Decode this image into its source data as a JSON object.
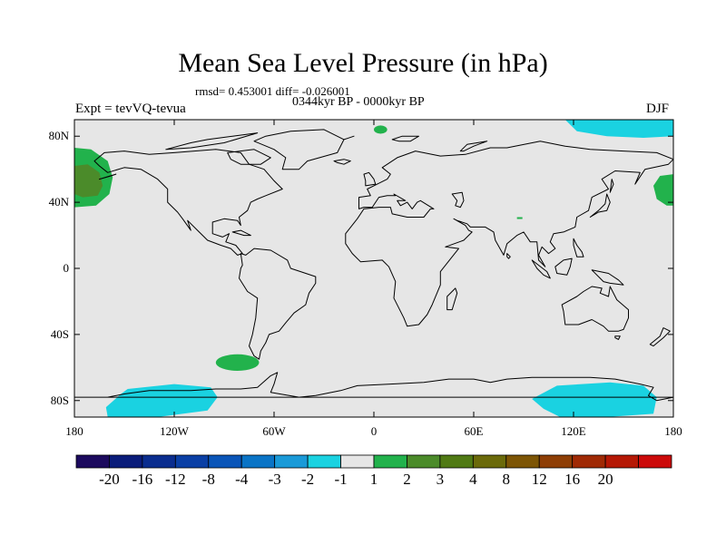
{
  "title": "Mean Sea Level Pressure (in hPa)",
  "stats": "rmsd= 0.453001 diff= -0.026001",
  "period": "0344kyr BP - 0000kyr BP",
  "experiment": "Expt = tevVQ-tevua",
  "season": "DJF",
  "map": {
    "background_color": "#e6e6e6",
    "coastline_color": "#000000",
    "lat_ticks": [
      "80N",
      "40N",
      "0",
      "40S",
      "80S"
    ],
    "lat_values": [
      80,
      40,
      0,
      -40,
      -80
    ],
    "lon_ticks": [
      "180",
      "120W",
      "60W",
      "0",
      "60E",
      "120E",
      "180"
    ],
    "lon_values": [
      -180,
      -120,
      -60,
      0,
      60,
      120,
      180
    ],
    "anomalies": [
      {
        "region": "North Pacific",
        "category": "3",
        "color": "#4b8b2a"
      },
      {
        "region": "North Pacific",
        "category": "2",
        "color": "#22b24c"
      },
      {
        "region": "Northwest Pacific",
        "category": "2",
        "color": "#22b24c"
      },
      {
        "region": "South Pacific off Chile",
        "category": "2",
        "color": "#22b24c"
      },
      {
        "region": "Svalbard",
        "category": "2",
        "color": "#22b24c"
      },
      {
        "region": "Arctic Siberia",
        "category": "-2",
        "color": "#1ad2e1"
      },
      {
        "region": "Southern Ocean Pacific sector",
        "category": "-2",
        "color": "#1ad2e1"
      },
      {
        "region": "Southern Ocean Australian sector",
        "category": "-2",
        "color": "#1ad2e1"
      }
    ]
  },
  "colorbar": {
    "colors": [
      "#1c0a5e",
      "#0a1c7a",
      "#0a2d8f",
      "#0a3fa5",
      "#0a55b8",
      "#0a74c6",
      "#1a9ad8",
      "#1ad2e1",
      "#e6e6e6",
      "#22b24c",
      "#4b8b2a",
      "#507a14",
      "#6b6a0a",
      "#7d5505",
      "#8e3e05",
      "#a02a05",
      "#b51805",
      "#cc0a0a"
    ],
    "labels": [
      "-20",
      "-16",
      "-12",
      "-8",
      "-4",
      "-3",
      "-2",
      "-1",
      "1",
      "2",
      "3",
      "4",
      "8",
      "12",
      "16",
      "20"
    ]
  }
}
